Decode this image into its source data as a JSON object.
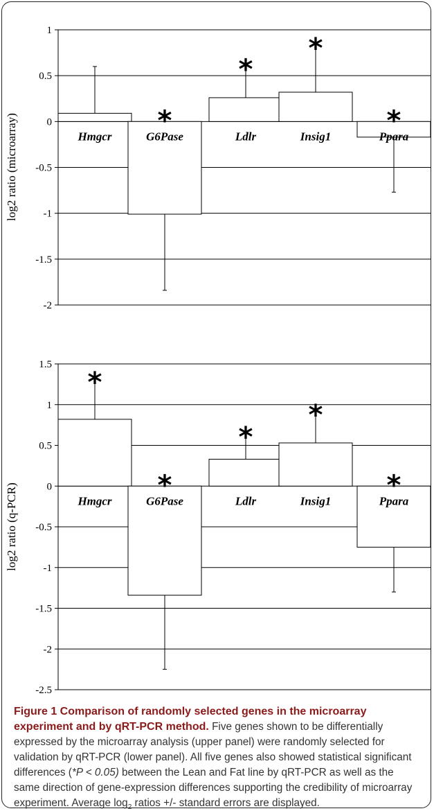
{
  "chart_data": [
    {
      "type": "bar",
      "panel": "upper",
      "ylabel": "log2 ratio (microarray)",
      "ylim": [
        -2,
        1
      ],
      "yticks": [
        "1",
        "0.5",
        "0",
        "-0.5",
        "-1",
        "-1.5",
        "-2"
      ],
      "ytick_values": [
        1,
        0.5,
        0,
        -0.5,
        -1,
        -1.5,
        -2
      ],
      "categories": [
        "Hmgcr",
        "G6Pase",
        "Ldlr",
        "Insig1",
        "Ppara"
      ],
      "values": [
        0.09,
        -1.01,
        0.26,
        0.32,
        -0.17
      ],
      "error_ends": [
        0.6,
        -1.84,
        0.61,
        0.84,
        -0.77
      ],
      "significant": [
        false,
        true,
        true,
        true,
        true
      ],
      "grid": true
    },
    {
      "type": "bar",
      "panel": "lower",
      "ylabel": "log2 ratio (q-PCR)",
      "ylim": [
        -2.5,
        1.5
      ],
      "yticks": [
        "1.5",
        "1",
        "0.5",
        "0",
        "-0.5",
        "-1",
        "-1.5",
        "-2",
        "-2.5"
      ],
      "ytick_values": [
        1.5,
        1,
        0.5,
        0,
        -0.5,
        -1,
        -1.5,
        -2,
        -2.5
      ],
      "categories": [
        "Hmgcr",
        "G6Pase",
        "Ldlr",
        "Insig1",
        "Ppara"
      ],
      "values": [
        0.82,
        -1.34,
        0.33,
        0.53,
        -0.75
      ],
      "error_ends": [
        1.32,
        -2.25,
        0.65,
        0.92,
        -1.3
      ],
      "significant": [
        true,
        true,
        true,
        true,
        true
      ],
      "grid": true
    }
  ],
  "star_symbol": "*",
  "caption": {
    "title": "Figure 1 Comparison of randomly selected genes in the microarray experiment and by qRT-PCR method",
    "period": ".",
    "text1": " Five genes shown to be differentially expressed by the microarray analysis (upper panel) were randomly selected for validation by qRT-PCR (lower panel). All five genes also showed statistical significant differences (",
    "pvalue": "*P < 0.05)",
    "text2": " between the Lean and Fat line by qRT-PCR as well as the same direction of gene-expression differences supporting the credibility of microarray experiment. Average log",
    "subscript": "2",
    "text3": " ratios +/- standard errors are displayed."
  }
}
